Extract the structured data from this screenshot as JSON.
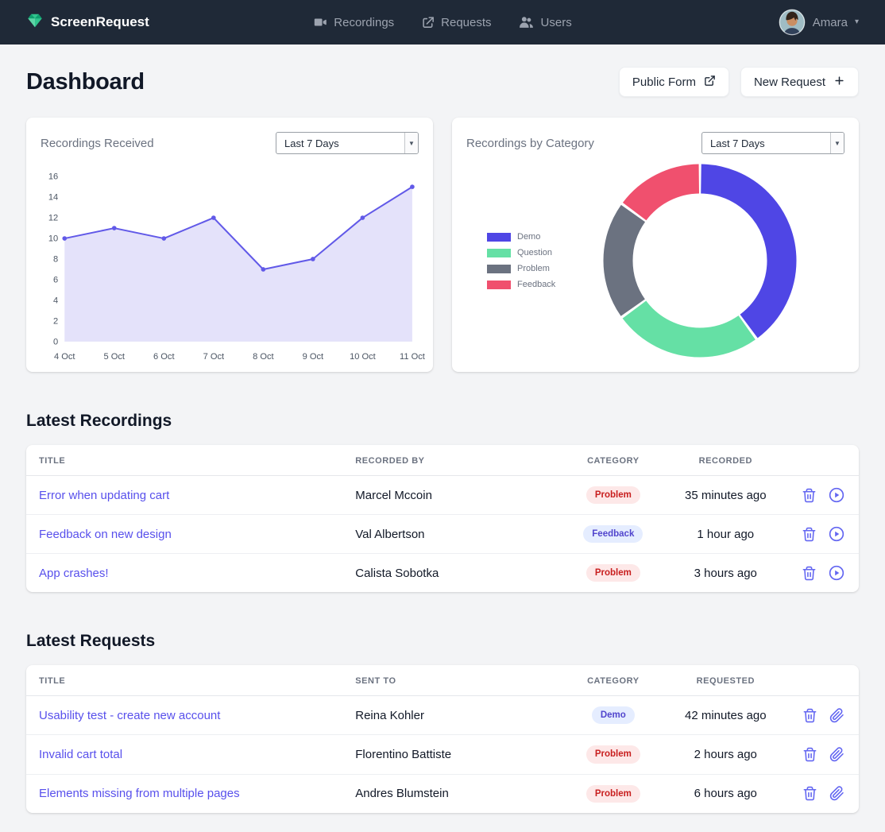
{
  "navbar": {
    "brand": "ScreenRequest",
    "items": [
      {
        "label": "Recordings",
        "icon": "video-icon"
      },
      {
        "label": "Requests",
        "icon": "share-icon"
      },
      {
        "label": "Users",
        "icon": "users-icon"
      }
    ],
    "user": {
      "name": "Amara"
    }
  },
  "page": {
    "title": "Dashboard",
    "actions": {
      "public_form": "Public Form",
      "new_request": "New Request"
    }
  },
  "cards": {
    "recordings_received": {
      "title": "Recordings Received",
      "range": "Last 7 Days"
    },
    "recordings_by_category": {
      "title": "Recordings by Category",
      "range": "Last 7 Days"
    }
  },
  "chart_data": [
    {
      "type": "line",
      "title": "Recordings Received",
      "x": [
        "4 Oct",
        "5 Oct",
        "6 Oct",
        "7 Oct",
        "8 Oct",
        "9 Oct",
        "10 Oct",
        "11 Oct"
      ],
      "values": [
        10,
        11,
        10,
        12,
        7,
        8,
        12,
        15
      ],
      "ylim": [
        0,
        16
      ],
      "yticks": [
        0,
        2,
        4,
        6,
        8,
        10,
        12,
        14,
        16
      ],
      "grid": false,
      "line_color": "#6159e8",
      "fill_color": "#e4e2fa"
    },
    {
      "type": "doughnut",
      "title": "Recordings by Category",
      "labels": [
        "Demo",
        "Question",
        "Problem",
        "Feedback"
      ],
      "values": [
        40,
        25,
        20,
        15
      ],
      "colors": [
        "#4f46e5",
        "#65e0a5",
        "#6b7280",
        "#f0506e"
      ],
      "legend_position": "left"
    }
  ],
  "latest_recordings": {
    "heading": "Latest Recordings",
    "columns": [
      "Title",
      "Recorded By",
      "Category",
      "Recorded"
    ],
    "rows": [
      {
        "title": "Error when updating cart",
        "by": "Marcel Mccoin",
        "category": "Problem",
        "category_type": "problem",
        "time": "35 minutes ago"
      },
      {
        "title": "Feedback on new design",
        "by": "Val Albertson",
        "category": "Feedback",
        "category_type": "feedback",
        "time": "1 hour ago"
      },
      {
        "title": "App crashes!",
        "by": "Calista Sobotka",
        "category": "Problem",
        "category_type": "problem",
        "time": "3 hours ago"
      }
    ]
  },
  "latest_requests": {
    "heading": "Latest Requests",
    "columns": [
      "Title",
      "Sent To",
      "Category",
      "Requested"
    ],
    "rows": [
      {
        "title": "Usability test - create new account",
        "to": "Reina Kohler",
        "category": "Demo",
        "category_type": "demo",
        "time": "42 minutes ago"
      },
      {
        "title": "Invalid cart total",
        "to": "Florentino Battiste",
        "category": "Problem",
        "category_type": "problem",
        "time": "2 hours ago"
      },
      {
        "title": "Elements missing from multiple pages",
        "to": "Andres Blumstein",
        "category": "Problem",
        "category_type": "problem",
        "time": "6 hours ago"
      }
    ]
  },
  "colors": {
    "navbar_bg": "#1f2937",
    "accent_indigo": "#5850ec",
    "badge_problem_bg": "#fde8e8",
    "badge_problem_text": "#c81e1e",
    "badge_indigo_bg": "#e5edff",
    "badge_indigo_text": "#5145cd",
    "page_bg": "#f3f4f6"
  }
}
